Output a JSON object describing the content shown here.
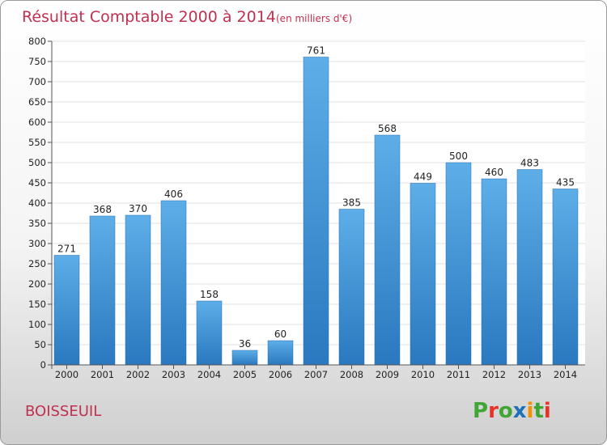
{
  "header": {
    "title": "Résultat Comptable 2000 à 2014",
    "subtitle": "(en milliers d'€)"
  },
  "footer": {
    "place": "BOISSEUIL",
    "logo": [
      "P",
      "r",
      "o",
      "x",
      "i",
      "t",
      "i"
    ],
    "logo_colors": [
      "#3fa535",
      "#e5332a",
      "#3fa535",
      "#1d71b8",
      "#f39200",
      "#3fa535",
      "#e5332a"
    ]
  },
  "chart_data": {
    "type": "bar",
    "title": "Résultat Comptable 2000 à 2014",
    "subtitle": "(en milliers d'€)",
    "categories": [
      "2000",
      "2001",
      "2002",
      "2003",
      "2004",
      "2005",
      "2006",
      "2007",
      "2008",
      "2009",
      "2010",
      "2011",
      "2012",
      "2013",
      "2014"
    ],
    "values": [
      271,
      368,
      370,
      406,
      158,
      36,
      60,
      761,
      385,
      568,
      449,
      500,
      460,
      483,
      435
    ],
    "value_labels": [
      "271",
      "368",
      "370",
      "406",
      "158",
      "36",
      "60",
      "761",
      "385",
      "568",
      "449",
      "500",
      "460",
      "483",
      "435"
    ],
    "yticks": [
      "0",
      "50",
      "100",
      "150",
      "200",
      "250",
      "300",
      "350",
      "400",
      "450",
      "500",
      "550",
      "600",
      "650",
      "700",
      "750",
      "800"
    ],
    "ylim": [
      0,
      800
    ],
    "grid": true,
    "xlabel": "",
    "ylabel": "",
    "bar_color": "#3a8fd6"
  }
}
